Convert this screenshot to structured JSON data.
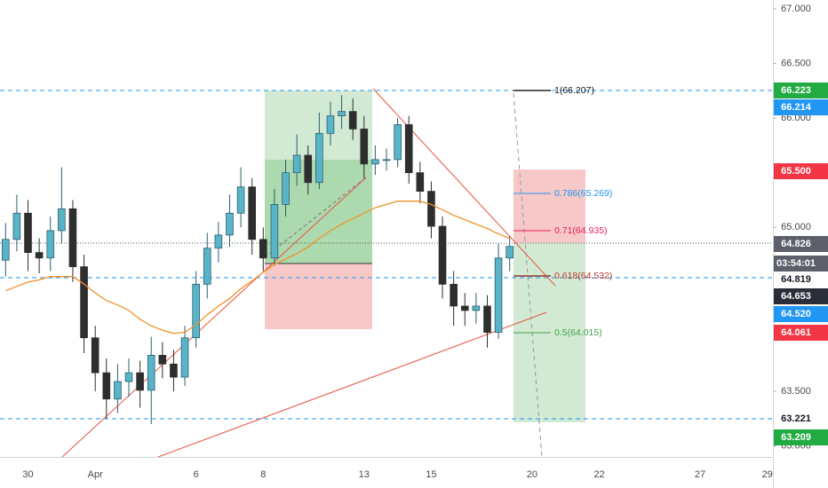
{
  "chart_data": {
    "type": "candlestick",
    "categories": [
      null,
      null,
      "30",
      null,
      null,
      null,
      null,
      null,
      "Apr",
      null,
      null,
      null,
      null,
      null,
      null,
      null,
      null,
      "6",
      null,
      null,
      null,
      null,
      null,
      "8",
      null,
      null,
      null,
      null,
      null,
      null,
      null,
      null,
      "13",
      null,
      null,
      null,
      null,
      null,
      "15",
      null,
      null,
      null,
      null,
      null,
      null,
      null,
      null,
      "20",
      null,
      null,
      null,
      null,
      null,
      "22",
      null,
      null,
      null,
      null,
      null,
      null,
      null,
      null,
      "27",
      null,
      null,
      null,
      null,
      null,
      "29"
    ],
    "open": [
      64.7,
      64.89,
      65.13,
      64.77,
      64.72,
      64.97,
      65.17,
      64.64,
      63.99,
      63.67,
      63.43,
      63.59,
      63.67,
      63.51,
      63.83,
      63.75,
      63.63,
      63.99,
      64.48,
      64.81,
      64.93,
      65.13,
      65.37,
      64.89,
      64.72,
      65.21,
      65.5,
      65.66,
      65.41,
      65.86,
      66.02,
      66.06,
      65.9,
      65.58,
      65.62,
      65.62,
      65.94,
      65.5,
      65.33,
      65.01,
      64.48,
      64.28,
      64.24,
      64.28,
      64.04,
      64.72,
      null,
      null,
      null,
      null,
      null,
      null,
      null,
      null,
      null,
      null,
      null,
      null,
      null,
      null,
      null,
      null,
      null,
      null,
      null,
      null,
      null,
      null,
      null
    ],
    "high": [
      65.04,
      65.3,
      65.25,
      64.9,
      65.1,
      65.55,
      65.25,
      64.75,
      64.1,
      63.8,
      63.75,
      63.8,
      63.78,
      64.0,
      63.95,
      63.88,
      64.1,
      64.6,
      64.95,
      65.05,
      65.3,
      65.55,
      65.45,
      65.0,
      65.35,
      65.62,
      65.85,
      65.75,
      66.05,
      66.15,
      66.21,
      66.18,
      66.02,
      65.75,
      65.72,
      66.0,
      66.02,
      65.6,
      65.42,
      65.1,
      64.6,
      64.4,
      64.4,
      64.38,
      64.85,
      64.92,
      null,
      null,
      null,
      null,
      null,
      null,
      null,
      null,
      null,
      null,
      null,
      null,
      null,
      null,
      null,
      null,
      null,
      null,
      null,
      null,
      null,
      null,
      null
    ],
    "low": [
      64.55,
      64.78,
      64.6,
      64.58,
      64.6,
      64.85,
      64.5,
      63.85,
      63.5,
      63.25,
      63.3,
      63.45,
      63.35,
      63.2,
      63.62,
      63.5,
      63.55,
      63.9,
      64.35,
      64.68,
      64.82,
      65.0,
      64.75,
      64.6,
      64.65,
      65.1,
      65.38,
      65.3,
      65.35,
      65.75,
      65.9,
      65.8,
      65.45,
      65.48,
      65.52,
      65.55,
      65.4,
      65.22,
      64.9,
      64.35,
      64.1,
      64.1,
      64.12,
      63.9,
      63.98,
      64.6,
      null,
      null,
      null,
      null,
      null,
      null,
      null,
      null,
      null,
      null,
      null,
      null,
      null,
      null,
      null,
      null,
      null,
      null,
      null,
      null,
      null,
      null,
      null
    ],
    "close": [
      64.89,
      65.13,
      64.77,
      64.72,
      64.97,
      65.17,
      64.64,
      63.99,
      63.67,
      63.43,
      63.59,
      63.67,
      63.51,
      63.83,
      63.75,
      63.63,
      63.99,
      64.48,
      64.81,
      64.93,
      65.13,
      65.37,
      64.89,
      64.72,
      65.21,
      65.5,
      65.66,
      65.41,
      65.86,
      66.02,
      66.06,
      65.9,
      65.58,
      65.62,
      65.62,
      65.94,
      65.5,
      65.33,
      65.01,
      64.48,
      64.28,
      64.24,
      64.28,
      64.04,
      64.72,
      64.826,
      null,
      null,
      null,
      null,
      null,
      null,
      null,
      null,
      null,
      null,
      null,
      null,
      null,
      null,
      null,
      null,
      null,
      null,
      null,
      null,
      null,
      null,
      null
    ],
    "up_color": "#5ab4c8",
    "down_color": "#2e2e2e",
    "ma": {
      "color": "#f0922b",
      "values": [
        64.42,
        64.46,
        64.5,
        64.52,
        64.55,
        64.55,
        64.55,
        64.48,
        64.4,
        64.33,
        64.29,
        64.24,
        64.16,
        64.1,
        64.06,
        64.03,
        64.04,
        64.11,
        64.2,
        64.28,
        64.35,
        64.44,
        64.51,
        64.59,
        64.66,
        64.71,
        64.76,
        64.82,
        64.9,
        64.97,
        65.03,
        65.08,
        65.13,
        65.18,
        65.21,
        65.24,
        65.24,
        65.24,
        65.21,
        65.16,
        65.11,
        65.07,
        65.03,
        64.99,
        64.94,
        64.9,
        null,
        null,
        null,
        null,
        null,
        null,
        null,
        null,
        null,
        null,
        null,
        null,
        null,
        null,
        null,
        null,
        null,
        null,
        null,
        null,
        null,
        null,
        null
      ]
    },
    "ylim": [
      62.9,
      67.08
    ],
    "yticks": [
      {
        "value": 63,
        "label": "63.000"
      },
      {
        "value": 63.5,
        "label": "63.500"
      },
      {
        "value": 65,
        "label": "65.000"
      },
      {
        "value": 66,
        "label": "66.000"
      },
      {
        "value": 66.5,
        "label": "66.500"
      },
      {
        "value": 67,
        "label": "67.000"
      }
    ],
    "grid": false,
    "fib_labels": [
      "1(66.207)",
      "0.786(65.269)",
      "0.71(64.935)",
      "0.618(64.532)",
      "0.5(64.015)"
    ],
    "price_labels": [
      {
        "text": "66.223",
        "color": "#22ab42"
      },
      {
        "text": "66.214",
        "color": "#2196f3"
      },
      {
        "text": "65.500",
        "color": "#f23645"
      },
      {
        "text": "64.826",
        "color": "#5d606b"
      },
      {
        "text": "03:54:01",
        "color": "#5d606b"
      },
      {
        "text": "64.819",
        "color": "#ffffff"
      },
      {
        "text": "64.653",
        "color": "#2a2e39"
      },
      {
        "text": "64.520",
        "color": "#2196f3"
      },
      {
        "text": "64.061",
        "color": "#f23645"
      },
      {
        "text": "63.221",
        "color": "#ffffff"
      },
      {
        "text": "63.209",
        "color": "#22ab42"
      }
    ]
  }
}
